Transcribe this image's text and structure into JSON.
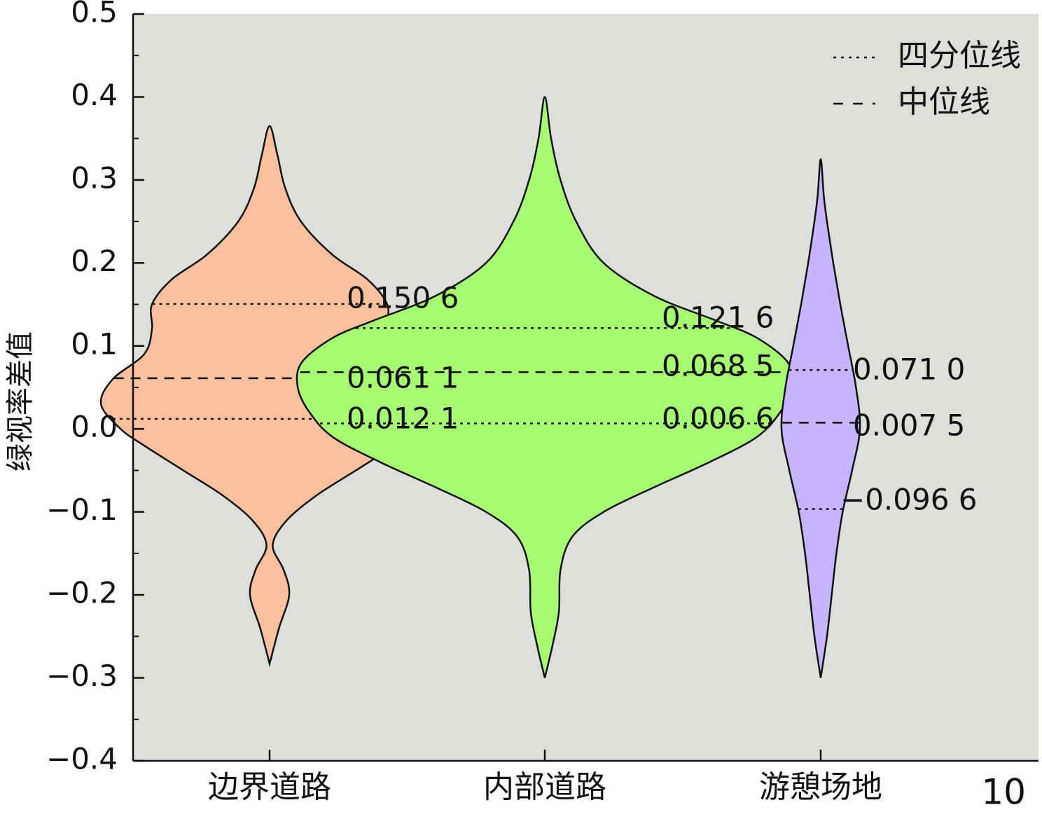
{
  "chart_data": {
    "type": "violin",
    "ylabel": "绿视率差值",
    "ylim": [
      -0.4,
      0.5
    ],
    "yticks": [
      "−0.4",
      "−0.3",
      "−0.2",
      "−0.1",
      "0.0",
      "0.1",
      "0.2",
      "0.3",
      "0.4",
      "0.5"
    ],
    "ytick_values": [
      -0.4,
      -0.3,
      -0.2,
      -0.1,
      0.0,
      0.1,
      0.2,
      0.3,
      0.4,
      0.5
    ],
    "background": "#dcdfda",
    "categories": [
      "边界道路",
      "内部道路",
      "游憩场地"
    ],
    "series": [
      {
        "category": "边界道路",
        "color": "#f9c09e",
        "q3": 0.1506,
        "median": 0.0611,
        "q1": 0.0121,
        "q3_label": "0.150 6",
        "median_label": "0.061 1",
        "q1_label": "0.012 1",
        "min": -0.283,
        "max": 0.365,
        "profile": [
          [
            -0.283,
            0.0
          ],
          [
            -0.24,
            0.012
          ],
          [
            -0.2,
            0.025
          ],
          [
            -0.17,
            0.018
          ],
          [
            -0.14,
            0.004
          ],
          [
            -0.11,
            0.022
          ],
          [
            -0.08,
            0.06
          ],
          [
            -0.05,
            0.11
          ],
          [
            -0.02,
            0.16
          ],
          [
            0.0,
            0.19
          ],
          [
            0.03,
            0.215
          ],
          [
            0.06,
            0.2
          ],
          [
            0.09,
            0.16
          ],
          [
            0.12,
            0.15
          ],
          [
            0.15,
            0.15
          ],
          [
            0.18,
            0.125
          ],
          [
            0.21,
            0.08
          ],
          [
            0.25,
            0.04
          ],
          [
            0.29,
            0.02
          ],
          [
            0.33,
            0.01
          ],
          [
            0.365,
            0.0
          ]
        ]
      },
      {
        "category": "内部道路",
        "color": "#a6fb72",
        "q3": 0.1216,
        "median": 0.0685,
        "q1": 0.0066,
        "q3_label": "0.121 6",
        "median_label": "0.068 5",
        "q1_label": "0.006 6",
        "min": -0.3,
        "max": 0.4,
        "profile": [
          [
            -0.3,
            0.0
          ],
          [
            -0.26,
            0.01
          ],
          [
            -0.22,
            0.018
          ],
          [
            -0.17,
            0.02
          ],
          [
            -0.13,
            0.035
          ],
          [
            -0.1,
            0.075
          ],
          [
            -0.07,
            0.14
          ],
          [
            -0.04,
            0.21
          ],
          [
            -0.01,
            0.27
          ],
          [
            0.02,
            0.3
          ],
          [
            0.05,
            0.315
          ],
          [
            0.08,
            0.31
          ],
          [
            0.11,
            0.27
          ],
          [
            0.13,
            0.22
          ],
          [
            0.16,
            0.14
          ],
          [
            0.2,
            0.075
          ],
          [
            0.25,
            0.04
          ],
          [
            0.3,
            0.02
          ],
          [
            0.35,
            0.008
          ],
          [
            0.4,
            0.0
          ]
        ]
      },
      {
        "category": "游憩场地",
        "color": "#c6b4ff",
        "q3": 0.071,
        "median": 0.0075,
        "q1": -0.0966,
        "q3_label": "0.071 0",
        "median_label": "0.007 5",
        "q1_label": "−0.096 6",
        "min": -0.3,
        "max": 0.325,
        "profile": [
          [
            -0.3,
            0.0
          ],
          [
            -0.25,
            0.008
          ],
          [
            -0.2,
            0.014
          ],
          [
            -0.15,
            0.02
          ],
          [
            -0.1,
            0.028
          ],
          [
            -0.05,
            0.04
          ],
          [
            0.0,
            0.05
          ],
          [
            0.05,
            0.045
          ],
          [
            0.1,
            0.035
          ],
          [
            0.15,
            0.025
          ],
          [
            0.2,
            0.016
          ],
          [
            0.25,
            0.008
          ],
          [
            0.28,
            0.004
          ],
          [
            0.325,
            0.0
          ]
        ]
      }
    ],
    "legend": [
      {
        "label": "四分位线",
        "style": "dotted"
      },
      {
        "label": "中位线",
        "style": "dashed"
      }
    ],
    "legend_position": "top-right",
    "panel_number": "10"
  }
}
